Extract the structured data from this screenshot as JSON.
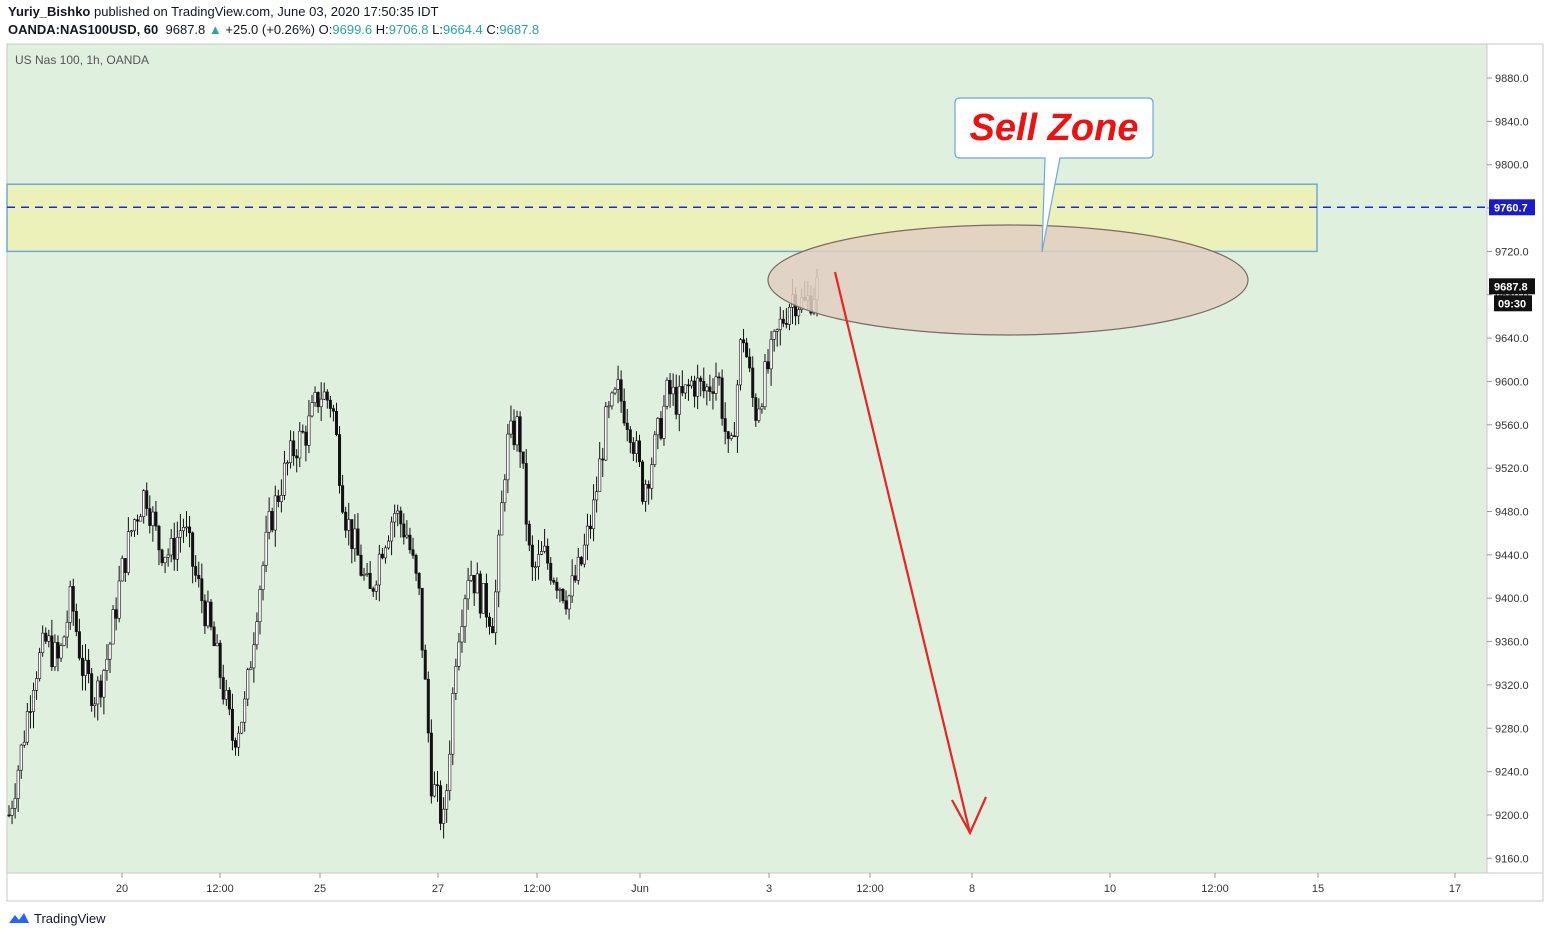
{
  "header": {
    "author": "Yuriy_Bishko",
    "published_text": " published on TradingView.com, June 03, 2020 17:50:35 IDT",
    "symbol": "OANDA:NAS100USD, 60",
    "last": "9687.8",
    "change": "+25.0 (+0.26%)",
    "o_label": "O:",
    "o_value": "9699.6",
    "h_label": "H:",
    "h_value": "9706.8",
    "l_label": "L:",
    "l_value": "9664.4",
    "c_label": "C:",
    "c_value": "9687.8"
  },
  "footer": {
    "brand": "TradingView",
    "logo_icon": "tradingview-logo-icon"
  },
  "colors": {
    "background": "#dff0de",
    "sell_zone_fill": "#ecf1b9",
    "sell_zone_stroke": "#6fa8dc",
    "ellipse_fill": "#e2cfc2",
    "ellipse_stroke": "#7a6a62",
    "arrow": "#ee2222",
    "dashed_line": "#2222ee",
    "candle": "#111111"
  },
  "chart_data": {
    "type": "candlestick",
    "instrument_label": "US Nas 100, 1h, OANDA",
    "y_ticks": [
      "9880.0",
      "9840.0",
      "9800.0",
      "9760.0",
      "9720.0",
      "9680.0",
      "9640.0",
      "9600.0",
      "9560.0",
      "9520.0",
      "9480.0",
      "9440.0",
      "9400.0",
      "9360.0",
      "9320.0",
      "9280.0",
      "9240.0",
      "9200.0",
      "9160.0"
    ],
    "x_ticks": [
      "20",
      "12:00",
      "25",
      "27",
      "12:00",
      "Jun",
      "3",
      "12:00",
      "8",
      "10",
      "12:00",
      "15",
      "17"
    ],
    "ylim": [
      9150,
      9890
    ],
    "last_price": 9687.8,
    "last_price_label": "9687.8",
    "countdown_label": "09:30",
    "resistance_level": 9760.7,
    "resistance_label": "9760.7",
    "sell_zone": {
      "low": 9720,
      "high": 9782
    },
    "callout_text": "Sell Zone",
    "arrow_target_price": 9200,
    "price_path": [
      9200,
      9260,
      9330,
      9360,
      9340,
      9400,
      9330,
      9310,
      9350,
      9420,
      9470,
      9500,
      9450,
      9440,
      9470,
      9420,
      9380,
      9330,
      9270,
      9300,
      9400,
      9470,
      9510,
      9540,
      9555,
      9590,
      9580,
      9480,
      9440,
      9400,
      9450,
      9480,
      9460,
      9400,
      9230,
      9190,
      9360,
      9430,
      9400,
      9380,
      9540,
      9560,
      9420,
      9440,
      9420,
      9400,
      9430,
      9480,
      9560,
      9590,
      9560,
      9500,
      9540,
      9590,
      9580,
      9600,
      9590,
      9610,
      9520,
      9650,
      9570,
      9610,
      9650,
      9680,
      9670,
      9688
    ]
  }
}
